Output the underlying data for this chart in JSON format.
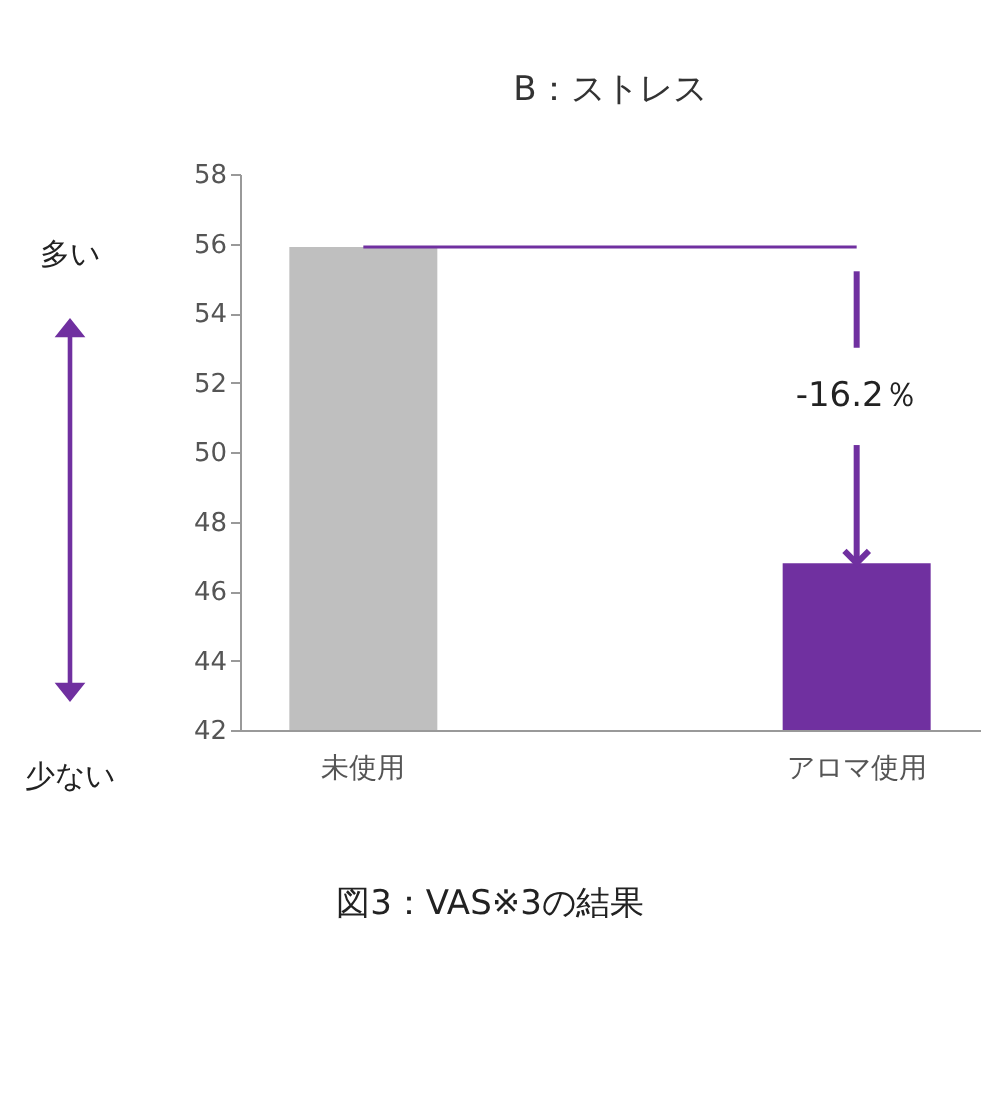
{
  "chart_data": {
    "type": "bar",
    "title": "B：ストレス",
    "categories": [
      "未使用",
      "アロマ使用"
    ],
    "values": [
      55.9,
      46.8
    ],
    "colors": [
      "#bfbfbf",
      "#7030a0"
    ],
    "ylim": [
      42,
      58
    ],
    "yticks": [
      42,
      44,
      46,
      48,
      50,
      52,
      54,
      56,
      58
    ],
    "ref_lines": [
      {
        "axis": "y",
        "value": 55.9,
        "color": "#7030a0"
      }
    ],
    "annotations": [
      "多い",
      "少ない",
      {
        "text": "-16.2％",
        "x": "アロマ使用",
        "y": 46.8
      },
      "図3：VAS※3の結果"
    ]
  }
}
